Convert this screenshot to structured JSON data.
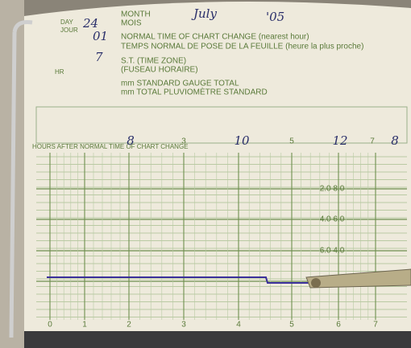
{
  "form": {
    "day_label": "DAY",
    "day_label_fr": "JOUR",
    "day": "24",
    "month_label": "MONTH",
    "month_label_fr": "MOIS",
    "month": "July",
    "year": "'05",
    "hour": "01",
    "change_label": "NORMAL TIME OF CHART CHANGE (nearest hour)",
    "change_label_fr": "TEMPS NORMAL DE POSE DE LA FEUILLE (heure la plus proche)",
    "hr_label": "HR",
    "zone": "7",
    "zone_label": "S.T. (TIME ZONE)",
    "zone_label_fr": "(FUSEAU HORAIRE)",
    "total_label": "mm STANDARD GAUGE TOTAL",
    "total_label_fr": "mm TOTAL PLUVIOMÈTRE STANDARD"
  },
  "chart": {
    "hours_label": "HOURS AFTER NORMAL TIME OF CHART CHANGE",
    "top_hours": [
      "8",
      "3",
      "10",
      "5",
      "12",
      "7",
      "8"
    ],
    "bottom_hours": [
      "0",
      "1",
      "2",
      "3",
      "4",
      "5",
      "6",
      "7"
    ],
    "scale_labels": [
      "2.0 8.0",
      "4.0 6.0",
      "6.0 4.0"
    ]
  }
}
